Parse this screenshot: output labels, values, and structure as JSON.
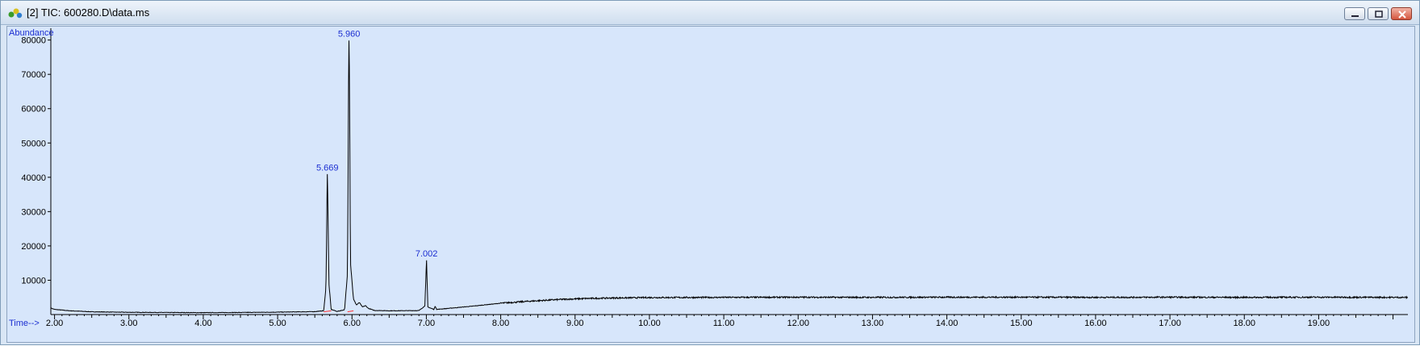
{
  "window": {
    "title": "[2] TIC: 600280.D\\data.ms",
    "controls": [
      "minimize",
      "restore",
      "close"
    ]
  },
  "colors": {
    "plot_background": "#d7e6fb",
    "trace": "#000000",
    "label_blue": "#1b2ed1",
    "baseline_marker": "#ff3333"
  },
  "chart_data": {
    "type": "line",
    "title": "",
    "xlabel": "Time-->",
    "ylabel": "Abundance",
    "xlim": [
      1.95,
      20.2
    ],
    "ylim": [
      0,
      82500
    ],
    "x_ticks": [
      "2.00",
      "3.00",
      "4.00",
      "5.00",
      "6.00",
      "7.00",
      "8.00",
      "9.00",
      "10.00",
      "11.00",
      "12.00",
      "13.00",
      "14.00",
      "15.00",
      "16.00",
      "17.00",
      "18.00",
      "19.00"
    ],
    "x_tick_values": [
      2,
      3,
      4,
      5,
      6,
      7,
      8,
      9,
      10,
      11,
      12,
      13,
      14,
      15,
      16,
      17,
      18,
      19
    ],
    "y_ticks": [
      "10000",
      "20000",
      "30000",
      "40000",
      "50000",
      "60000",
      "70000",
      "80000"
    ],
    "y_tick_values": [
      10000,
      20000,
      30000,
      40000,
      50000,
      60000,
      70000,
      80000
    ],
    "peaks": [
      {
        "rt": 5.669,
        "label": "5.669",
        "height": 41000,
        "width": 0.018
      },
      {
        "rt": 5.96,
        "label": "5.960",
        "height": 80000,
        "width": 0.022
      },
      {
        "rt": 7.002,
        "label": "7.002",
        "height": 16000,
        "width": 0.012
      }
    ],
    "series": [
      {
        "x": [
          1.95,
          2.0,
          2.2,
          2.5,
          3.0,
          3.5,
          4.0,
          4.5,
          5.0,
          5.5,
          5.62,
          5.65,
          5.669,
          5.69,
          5.72,
          5.8,
          5.9,
          5.94,
          5.96,
          5.98,
          6.02,
          6.06,
          6.1,
          6.14,
          6.18,
          6.22,
          6.3,
          6.5,
          6.9,
          6.98,
          7.002,
          7.02,
          7.1,
          7.12,
          7.14,
          7.3,
          7.6,
          8.0,
          8.4,
          8.8,
          9.2,
          9.6,
          10.0,
          11.0,
          12.0,
          13.0,
          14.0,
          15.0,
          16.0,
          17.0,
          18.0,
          19.0,
          20.0,
          20.2
        ],
        "y": [
          1900,
          1500,
          1100,
          800,
          650,
          600,
          550,
          600,
          700,
          850,
          1100,
          8000,
          41000,
          9000,
          1500,
          900,
          1400,
          12000,
          80000,
          15000,
          4500,
          2800,
          3500,
          2200,
          2600,
          1800,
          1200,
          1100,
          1150,
          2500,
          16000,
          2200,
          1500,
          2400,
          1500,
          1800,
          2400,
          3300,
          3900,
          4400,
          4700,
          4850,
          4950,
          5000,
          5050,
          5000,
          5050,
          5050,
          5000,
          5050,
          5000,
          5050,
          5000,
          5000
        ]
      }
    ]
  }
}
